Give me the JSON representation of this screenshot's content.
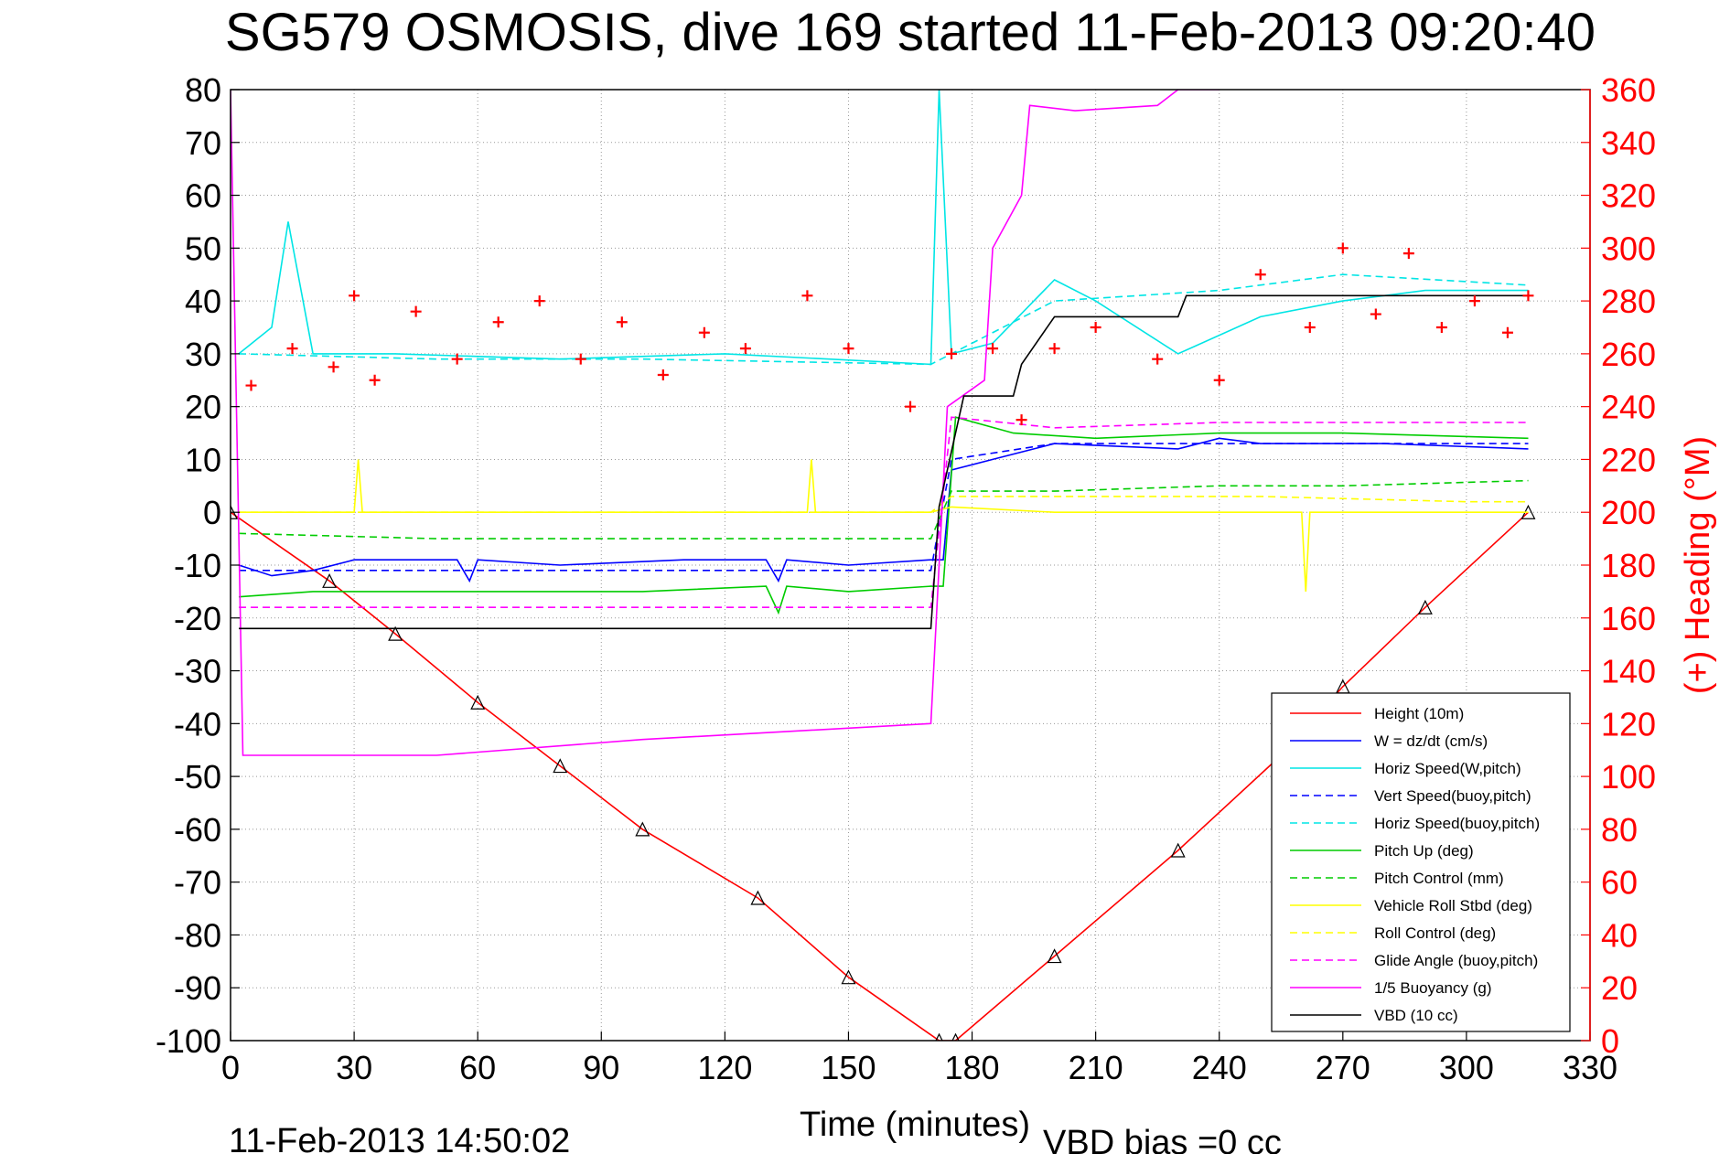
{
  "chart_data": {
    "type": "line",
    "title": "SG579 OSMOSIS, dive 169 started 11-Feb-2013 09:20:40",
    "xlabel": "Time (minutes)",
    "ylabel": "",
    "y2label": "(+) Heading (°M)",
    "xlim": [
      0,
      330
    ],
    "ylim": [
      -100,
      80
    ],
    "y2lim": [
      0,
      360
    ],
    "xticks": [
      "0",
      "30",
      "60",
      "90",
      "120",
      "150",
      "180",
      "210",
      "240",
      "270",
      "300",
      "330"
    ],
    "yticks": [
      "80",
      "70",
      "60",
      "50",
      "40",
      "30",
      "20",
      "10",
      "0",
      "-10",
      "-20",
      "-30",
      "-40",
      "-50",
      "-60",
      "-70",
      "-80",
      "-90",
      "-100"
    ],
    "y2ticks": [
      "360",
      "340",
      "320",
      "300",
      "280",
      "260",
      "240",
      "220",
      "200",
      "180",
      "160",
      "140",
      "120",
      "100",
      "80",
      "60",
      "40",
      "20",
      "0"
    ],
    "grid": true,
    "legend_position": "lower-right",
    "footer_date": "11-Feb-2013 14:50:02",
    "footer_bias": "VBD bias =0 cc",
    "series": [
      {
        "name": "Height (10m)",
        "color": "#ff0000",
        "style": "solid",
        "x": [
          0,
          24,
          40,
          60,
          80,
          100,
          128,
          150,
          172,
          176,
          200,
          230,
          255,
          270,
          290,
          315
        ],
        "y": [
          0,
          -13,
          -23,
          -36,
          -48,
          -60,
          -73,
          -88,
          -100,
          -100,
          -84,
          -64,
          -46,
          -33,
          -18,
          0
        ]
      },
      {
        "name": "W = dz/dt (cm/s)",
        "color": "#0000ff",
        "style": "solid",
        "x": [
          2,
          10,
          20,
          30,
          55,
          58,
          60,
          80,
          110,
          130,
          133,
          135,
          150,
          170,
          173,
          175,
          185,
          200,
          230,
          240,
          250,
          270,
          280,
          315
        ],
        "y": [
          -10,
          -12,
          -11,
          -9,
          -9,
          -13,
          -9,
          -10,
          -9,
          -9,
          -13,
          -9,
          -10,
          -9,
          -9,
          8,
          10,
          13,
          12,
          14,
          13,
          13,
          13,
          12
        ]
      },
      {
        "name": "Horiz Speed(W,pitch)",
        "color": "#00e5e5",
        "style": "solid",
        "x": [
          2,
          10,
          14,
          20,
          40,
          80,
          120,
          170,
          172,
          175,
          185,
          195,
          200,
          210,
          230,
          250,
          270,
          290,
          315
        ],
        "y": [
          30,
          35,
          55,
          30,
          30,
          29,
          30,
          28,
          80,
          30,
          32,
          40,
          44,
          40,
          30,
          37,
          40,
          42,
          42
        ]
      },
      {
        "name": "Vert Speed(buoy,pitch)",
        "color": "#0000ff",
        "style": "dashed",
        "x": [
          2,
          50,
          100,
          170,
          175,
          200,
          250,
          315
        ],
        "y": [
          -11,
          -11,
          -11,
          -11,
          10,
          13,
          13,
          13
        ]
      },
      {
        "name": "Horiz Speed(buoy,pitch)",
        "color": "#00e5e5",
        "style": "dashed",
        "x": [
          2,
          50,
          100,
          170,
          175,
          200,
          240,
          270,
          315
        ],
        "y": [
          30,
          29,
          29,
          28,
          30,
          40,
          42,
          45,
          43
        ]
      },
      {
        "name": "Pitch Up (deg)",
        "color": "#00cc00",
        "style": "solid",
        "x": [
          2,
          20,
          60,
          100,
          130,
          133,
          135,
          150,
          170,
          173,
          176,
          190,
          210,
          240,
          270,
          315
        ],
        "y": [
          -16,
          -15,
          -15,
          -15,
          -14,
          -19,
          -14,
          -15,
          -14,
          -14,
          18,
          15,
          14,
          15,
          15,
          14
        ]
      },
      {
        "name": "Pitch Control (mm)",
        "color": "#00cc00",
        "style": "dashed",
        "x": [
          2,
          50,
          100,
          170,
          175,
          200,
          240,
          270,
          315
        ],
        "y": [
          -4,
          -5,
          -5,
          -5,
          4,
          4,
          5,
          5,
          6
        ]
      },
      {
        "name": "Vehicle Roll Stbd (deg)",
        "color": "#ffff00",
        "style": "solid",
        "x": [
          2,
          30,
          31,
          32,
          60,
          100,
          140,
          141,
          142,
          170,
          175,
          200,
          250,
          260,
          261,
          262,
          280,
          300,
          315
        ],
        "y": [
          0,
          0,
          10,
          0,
          0,
          0,
          0,
          10,
          0,
          0,
          1,
          0,
          0,
          0,
          -15,
          0,
          0,
          0,
          0
        ]
      },
      {
        "name": "Roll Control (deg)",
        "color": "#ffff00",
        "style": "dashed",
        "x": [
          2,
          100,
          170,
          175,
          200,
          250,
          300,
          315
        ],
        "y": [
          0,
          0,
          0,
          3,
          3,
          3,
          2,
          2
        ]
      },
      {
        "name": "Glide Angle (buoy,pitch)",
        "color": "#ff00ff",
        "style": "dashed",
        "x": [
          2,
          50,
          100,
          170,
          175,
          200,
          240,
          270,
          315
        ],
        "y": [
          -18,
          -18,
          -18,
          -18,
          18,
          16,
          17,
          17,
          17
        ]
      },
      {
        "name": "1/5 Buoyancy (g)",
        "color": "#ff00ff",
        "style": "solid",
        "x": [
          0,
          3,
          50,
          100,
          170,
          174,
          183,
          185,
          192,
          194,
          205,
          225,
          230,
          240
        ],
        "y": [
          80,
          -46,
          -46,
          -43,
          -40,
          20,
          25,
          50,
          60,
          77,
          76,
          77,
          80,
          80
        ]
      },
      {
        "name": "VBD (10 cc)",
        "color": "#000000",
        "style": "solid",
        "x": [
          2,
          170,
          172,
          178,
          190,
          192,
          200,
          230,
          232,
          260,
          315
        ],
        "y": [
          -22,
          -22,
          1,
          22,
          22,
          28,
          37,
          37,
          41,
          41,
          41
        ]
      },
      {
        "name": "Heading (°M)",
        "color": "#ff0000",
        "style": "markers",
        "axis": "right",
        "x": [
          5,
          15,
          25,
          30,
          35,
          45,
          55,
          65,
          75,
          85,
          95,
          105,
          115,
          125,
          140,
          150,
          165,
          175,
          185,
          192,
          200,
          210,
          225,
          240,
          250,
          262,
          270,
          278,
          286,
          294,
          302,
          310,
          315
        ],
        "y": [
          248,
          262,
          255,
          282,
          250,
          276,
          258,
          272,
          280,
          258,
          272,
          252,
          268,
          262,
          282,
          262,
          240,
          260,
          262,
          235,
          262,
          270,
          258,
          250,
          290,
          270,
          300,
          275,
          298,
          270,
          280,
          268,
          282
        ]
      }
    ]
  }
}
